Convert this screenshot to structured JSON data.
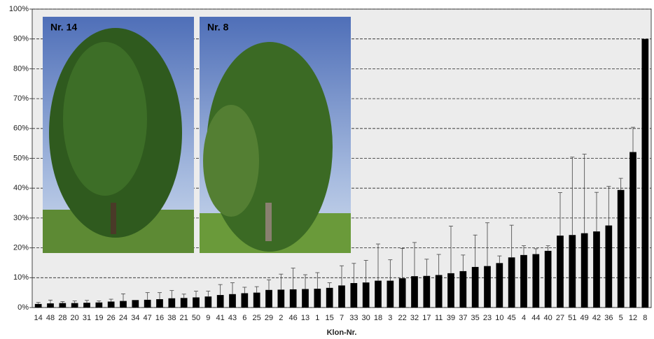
{
  "chart_data": {
    "type": "bar",
    "x_label": "Klon-Nr.",
    "annotations": [
      "Nr. 14",
      "Nr. 8"
    ],
    "categories": [
      "14",
      "48",
      "28",
      "20",
      "31",
      "19",
      "26",
      "24",
      "34",
      "47",
      "16",
      "38",
      "21",
      "50",
      "9",
      "41",
      "43",
      "6",
      "25",
      "29",
      "2",
      "46",
      "13",
      "1",
      "15",
      "7",
      "33",
      "30",
      "18",
      "3",
      "22",
      "32",
      "17",
      "11",
      "39",
      "37",
      "35",
      "23",
      "10",
      "45",
      "4",
      "44",
      "40",
      "27",
      "51",
      "49",
      "42",
      "36",
      "5",
      "12",
      "8"
    ],
    "values": [
      1.2,
      1.4,
      1.5,
      1.5,
      1.6,
      1.7,
      2.0,
      2.2,
      2.5,
      2.6,
      2.8,
      3.1,
      3.2,
      3.4,
      3.7,
      4.2,
      4.5,
      4.8,
      5.0,
      5.9,
      6.0,
      6.1,
      6.2,
      6.3,
      6.6,
      7.4,
      8.2,
      8.4,
      9.0,
      9.0,
      9.8,
      10.5,
      10.6,
      10.9,
      11.5,
      12.2,
      13.6,
      13.9,
      14.9,
      16.8,
      17.6,
      17.9,
      19.0,
      24.1,
      24.3,
      24.9,
      25.5,
      27.5,
      39.4,
      52.1,
      90
    ],
    "errors": [
      0.5,
      1.1,
      0.5,
      0.7,
      0.8,
      0.5,
      0.8,
      2.4,
      null,
      2.4,
      2.2,
      2.6,
      1.3,
      2.1,
      1.8,
      3.5,
      3.8,
      2.0,
      2.0,
      3.4,
      5.2,
      7.1,
      4.8,
      5.4,
      1.7,
      6.6,
      6.6,
      7.4,
      12.3,
      7.0,
      10.0,
      11.3,
      5.6,
      6.9,
      15.8,
      5.4,
      10.7,
      14.5,
      2.4,
      10.8,
      3.1,
      1.8,
      1.7,
      14.4,
      26.1,
      26.5,
      13.1,
      13.1,
      3.9,
      8.3,
      null
    ],
    "color": "#000000",
    "ylim": [
      0,
      100
    ],
    "yticks": [
      {
        "value": 0,
        "label": "0%"
      },
      {
        "value": 10,
        "label": "10%"
      },
      {
        "value": 20,
        "label": "20%"
      },
      {
        "value": 30,
        "label": "30%"
      },
      {
        "value": 40,
        "label": "40%"
      },
      {
        "value": 50,
        "label": "50%"
      },
      {
        "value": 60,
        "label": "60%"
      },
      {
        "value": 70,
        "label": "70%"
      },
      {
        "value": 80,
        "label": "80%"
      },
      {
        "value": 90,
        "label": "90%"
      },
      {
        "value": 100,
        "label": "100%"
      }
    ],
    "grid": true
  }
}
